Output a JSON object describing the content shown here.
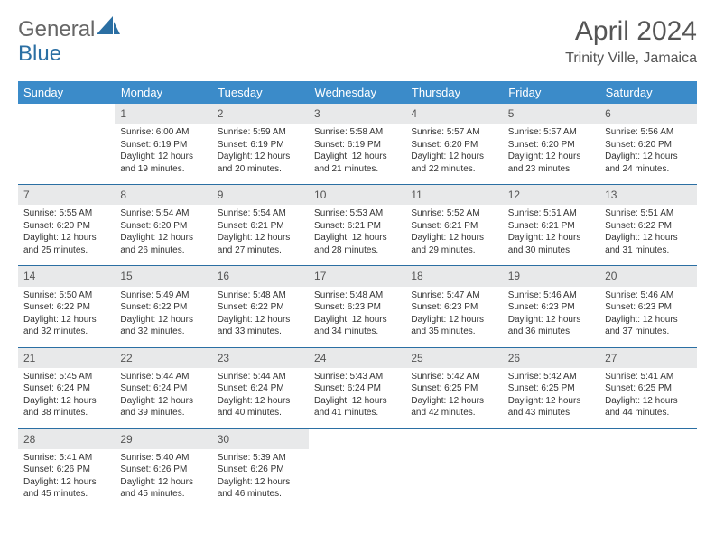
{
  "branding": {
    "logo_text_1": "General",
    "logo_text_2": "Blue",
    "logo_color_1": "#707070",
    "logo_color_2": "#2b6fa3"
  },
  "header": {
    "month_title": "April 2024",
    "location": "Trinity Ville, Jamaica"
  },
  "colors": {
    "header_bg": "#3b8bc9",
    "header_fg": "#ffffff",
    "daynum_bg": "#e8e9ea",
    "rule": "#2b6fa3",
    "text": "#333333"
  },
  "weekdays": [
    "Sunday",
    "Monday",
    "Tuesday",
    "Wednesday",
    "Thursday",
    "Friday",
    "Saturday"
  ],
  "weeks": [
    [
      null,
      {
        "n": "1",
        "sunrise": "6:00 AM",
        "sunset": "6:19 PM",
        "daylight": "12 hours and 19 minutes."
      },
      {
        "n": "2",
        "sunrise": "5:59 AM",
        "sunset": "6:19 PM",
        "daylight": "12 hours and 20 minutes."
      },
      {
        "n": "3",
        "sunrise": "5:58 AM",
        "sunset": "6:19 PM",
        "daylight": "12 hours and 21 minutes."
      },
      {
        "n": "4",
        "sunrise": "5:57 AM",
        "sunset": "6:20 PM",
        "daylight": "12 hours and 22 minutes."
      },
      {
        "n": "5",
        "sunrise": "5:57 AM",
        "sunset": "6:20 PM",
        "daylight": "12 hours and 23 minutes."
      },
      {
        "n": "6",
        "sunrise": "5:56 AM",
        "sunset": "6:20 PM",
        "daylight": "12 hours and 24 minutes."
      }
    ],
    [
      {
        "n": "7",
        "sunrise": "5:55 AM",
        "sunset": "6:20 PM",
        "daylight": "12 hours and 25 minutes."
      },
      {
        "n": "8",
        "sunrise": "5:54 AM",
        "sunset": "6:20 PM",
        "daylight": "12 hours and 26 minutes."
      },
      {
        "n": "9",
        "sunrise": "5:54 AM",
        "sunset": "6:21 PM",
        "daylight": "12 hours and 27 minutes."
      },
      {
        "n": "10",
        "sunrise": "5:53 AM",
        "sunset": "6:21 PM",
        "daylight": "12 hours and 28 minutes."
      },
      {
        "n": "11",
        "sunrise": "5:52 AM",
        "sunset": "6:21 PM",
        "daylight": "12 hours and 29 minutes."
      },
      {
        "n": "12",
        "sunrise": "5:51 AM",
        "sunset": "6:21 PM",
        "daylight": "12 hours and 30 minutes."
      },
      {
        "n": "13",
        "sunrise": "5:51 AM",
        "sunset": "6:22 PM",
        "daylight": "12 hours and 31 minutes."
      }
    ],
    [
      {
        "n": "14",
        "sunrise": "5:50 AM",
        "sunset": "6:22 PM",
        "daylight": "12 hours and 32 minutes."
      },
      {
        "n": "15",
        "sunrise": "5:49 AM",
        "sunset": "6:22 PM",
        "daylight": "12 hours and 32 minutes."
      },
      {
        "n": "16",
        "sunrise": "5:48 AM",
        "sunset": "6:22 PM",
        "daylight": "12 hours and 33 minutes."
      },
      {
        "n": "17",
        "sunrise": "5:48 AM",
        "sunset": "6:23 PM",
        "daylight": "12 hours and 34 minutes."
      },
      {
        "n": "18",
        "sunrise": "5:47 AM",
        "sunset": "6:23 PM",
        "daylight": "12 hours and 35 minutes."
      },
      {
        "n": "19",
        "sunrise": "5:46 AM",
        "sunset": "6:23 PM",
        "daylight": "12 hours and 36 minutes."
      },
      {
        "n": "20",
        "sunrise": "5:46 AM",
        "sunset": "6:23 PM",
        "daylight": "12 hours and 37 minutes."
      }
    ],
    [
      {
        "n": "21",
        "sunrise": "5:45 AM",
        "sunset": "6:24 PM",
        "daylight": "12 hours and 38 minutes."
      },
      {
        "n": "22",
        "sunrise": "5:44 AM",
        "sunset": "6:24 PM",
        "daylight": "12 hours and 39 minutes."
      },
      {
        "n": "23",
        "sunrise": "5:44 AM",
        "sunset": "6:24 PM",
        "daylight": "12 hours and 40 minutes."
      },
      {
        "n": "24",
        "sunrise": "5:43 AM",
        "sunset": "6:24 PM",
        "daylight": "12 hours and 41 minutes."
      },
      {
        "n": "25",
        "sunrise": "5:42 AM",
        "sunset": "6:25 PM",
        "daylight": "12 hours and 42 minutes."
      },
      {
        "n": "26",
        "sunrise": "5:42 AM",
        "sunset": "6:25 PM",
        "daylight": "12 hours and 43 minutes."
      },
      {
        "n": "27",
        "sunrise": "5:41 AM",
        "sunset": "6:25 PM",
        "daylight": "12 hours and 44 minutes."
      }
    ],
    [
      {
        "n": "28",
        "sunrise": "5:41 AM",
        "sunset": "6:26 PM",
        "daylight": "12 hours and 45 minutes."
      },
      {
        "n": "29",
        "sunrise": "5:40 AM",
        "sunset": "6:26 PM",
        "daylight": "12 hours and 45 minutes."
      },
      {
        "n": "30",
        "sunrise": "5:39 AM",
        "sunset": "6:26 PM",
        "daylight": "12 hours and 46 minutes."
      },
      null,
      null,
      null,
      null
    ]
  ]
}
